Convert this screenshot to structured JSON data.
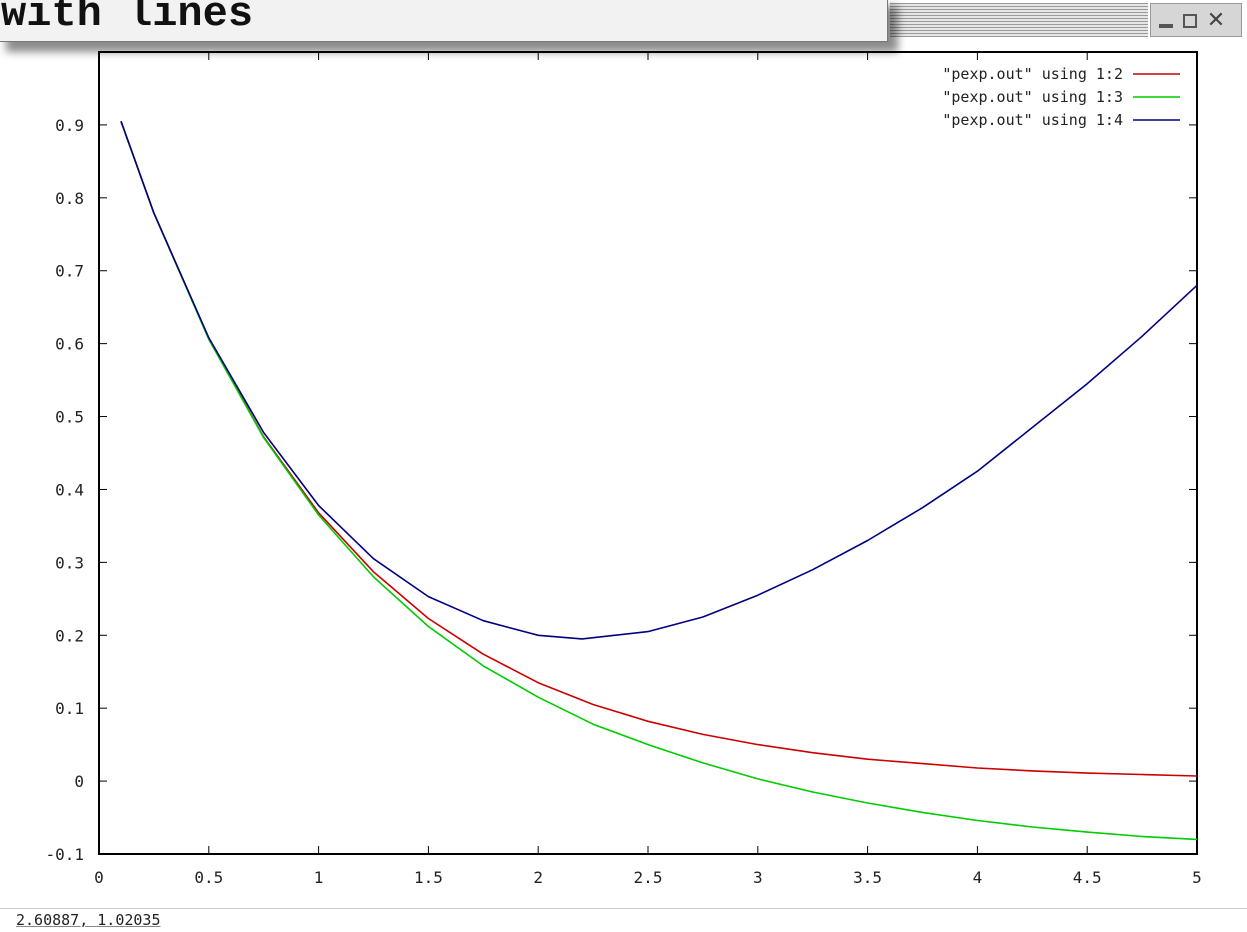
{
  "window": {
    "popup_text": "with lines",
    "status_readout": "2.60887,  1.02035",
    "controls": {
      "minimize": "minimize",
      "maximize": "maximize",
      "close": "close"
    }
  },
  "chart_data": {
    "type": "line",
    "title": "",
    "xlabel": "",
    "ylabel": "",
    "xlim": [
      0,
      5
    ],
    "ylim": [
      -0.1,
      1.0
    ],
    "xticks": [
      "0",
      "0.5",
      "1",
      "1.5",
      "2",
      "2.5",
      "3",
      "3.5",
      "4",
      "4.5",
      "5"
    ],
    "yticks": [
      "-0.1",
      "0",
      "0.1",
      "0.2",
      "0.3",
      "0.4",
      "0.5",
      "0.6",
      "0.7",
      "0.8",
      "0.9"
    ],
    "grid": false,
    "legend_position": "top-right",
    "series": [
      {
        "name": "\"pexp.out\" using 1:2",
        "color": "#cc0000",
        "x": [
          0.1,
          0.25,
          0.5,
          0.75,
          1.0,
          1.25,
          1.5,
          1.75,
          2.0,
          2.25,
          2.5,
          2.75,
          3.0,
          3.25,
          3.5,
          3.75,
          4.0,
          4.25,
          4.5,
          4.75,
          5.0
        ],
        "y": [
          0.905,
          0.779,
          0.607,
          0.472,
          0.368,
          0.287,
          0.223,
          0.174,
          0.135,
          0.105,
          0.082,
          0.064,
          0.05,
          0.039,
          0.03,
          0.024,
          0.018,
          0.014,
          0.011,
          0.009,
          0.007
        ]
      },
      {
        "name": "\"pexp.out\" using 1:3",
        "color": "#00cc00",
        "x": [
          0.1,
          0.25,
          0.5,
          0.75,
          1.0,
          1.25,
          1.5,
          1.75,
          2.0,
          2.25,
          2.5,
          2.75,
          3.0,
          3.25,
          3.5,
          3.75,
          4.0,
          4.25,
          4.5,
          4.75,
          5.0
        ],
        "y": [
          0.905,
          0.779,
          0.606,
          0.471,
          0.365,
          0.28,
          0.212,
          0.158,
          0.115,
          0.078,
          0.05,
          0.025,
          0.003,
          -0.015,
          -0.03,
          -0.043,
          -0.054,
          -0.063,
          -0.07,
          -0.076,
          -0.08
        ]
      },
      {
        "name": "\"pexp.out\" using 1:4",
        "color": "#000080",
        "x": [
          0.1,
          0.25,
          0.5,
          0.75,
          1.0,
          1.25,
          1.5,
          1.75,
          2.0,
          2.2,
          2.5,
          2.75,
          3.0,
          3.25,
          3.5,
          3.75,
          4.0,
          4.25,
          4.5,
          4.75,
          5.0
        ],
        "y": [
          0.905,
          0.779,
          0.608,
          0.478,
          0.378,
          0.305,
          0.253,
          0.22,
          0.2,
          0.195,
          0.205,
          0.225,
          0.255,
          0.29,
          0.33,
          0.375,
          0.425,
          0.485,
          0.545,
          0.61,
          0.68
        ]
      }
    ]
  }
}
